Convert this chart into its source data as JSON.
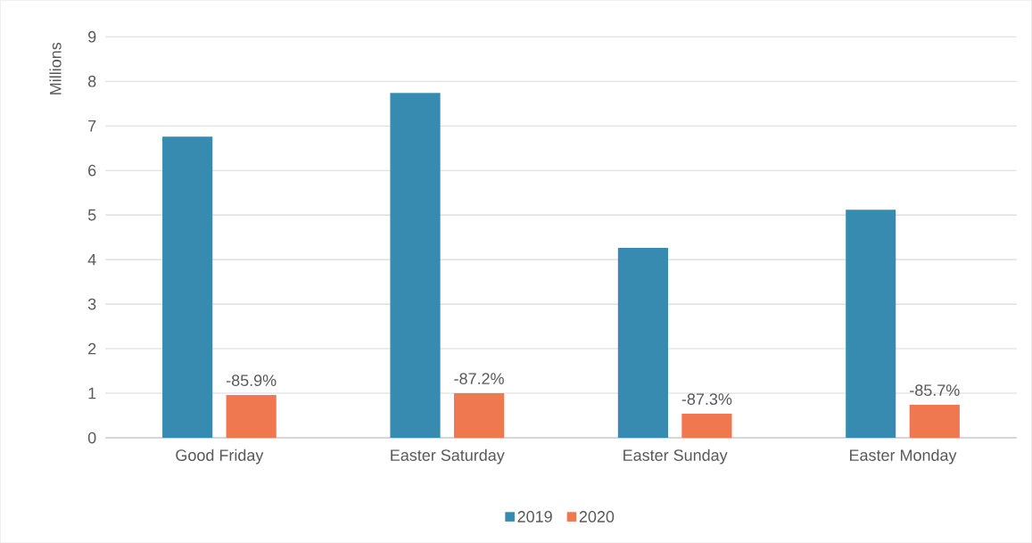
{
  "chart_data": {
    "type": "bar",
    "ylabel": "Millions",
    "categories": [
      "Good Friday",
      "Easter Saturday",
      "Easter Sunday",
      "Easter Monday"
    ],
    "series": [
      {
        "name": "2019",
        "color": "#378bb0",
        "values": [
          6.76,
          7.74,
          4.26,
          5.12
        ]
      },
      {
        "name": "2020",
        "color": "#ef7850",
        "values": [
          0.96,
          1.0,
          0.54,
          0.74
        ]
      }
    ],
    "annotations": [
      "-85.9%",
      "-87.2%",
      "-87.3%",
      "-85.7%"
    ],
    "ylim": [
      0,
      9
    ],
    "yticks": [
      0,
      1,
      2,
      3,
      4,
      5,
      6,
      7,
      8,
      9
    ],
    "grid": "y",
    "legend": "bottom"
  }
}
